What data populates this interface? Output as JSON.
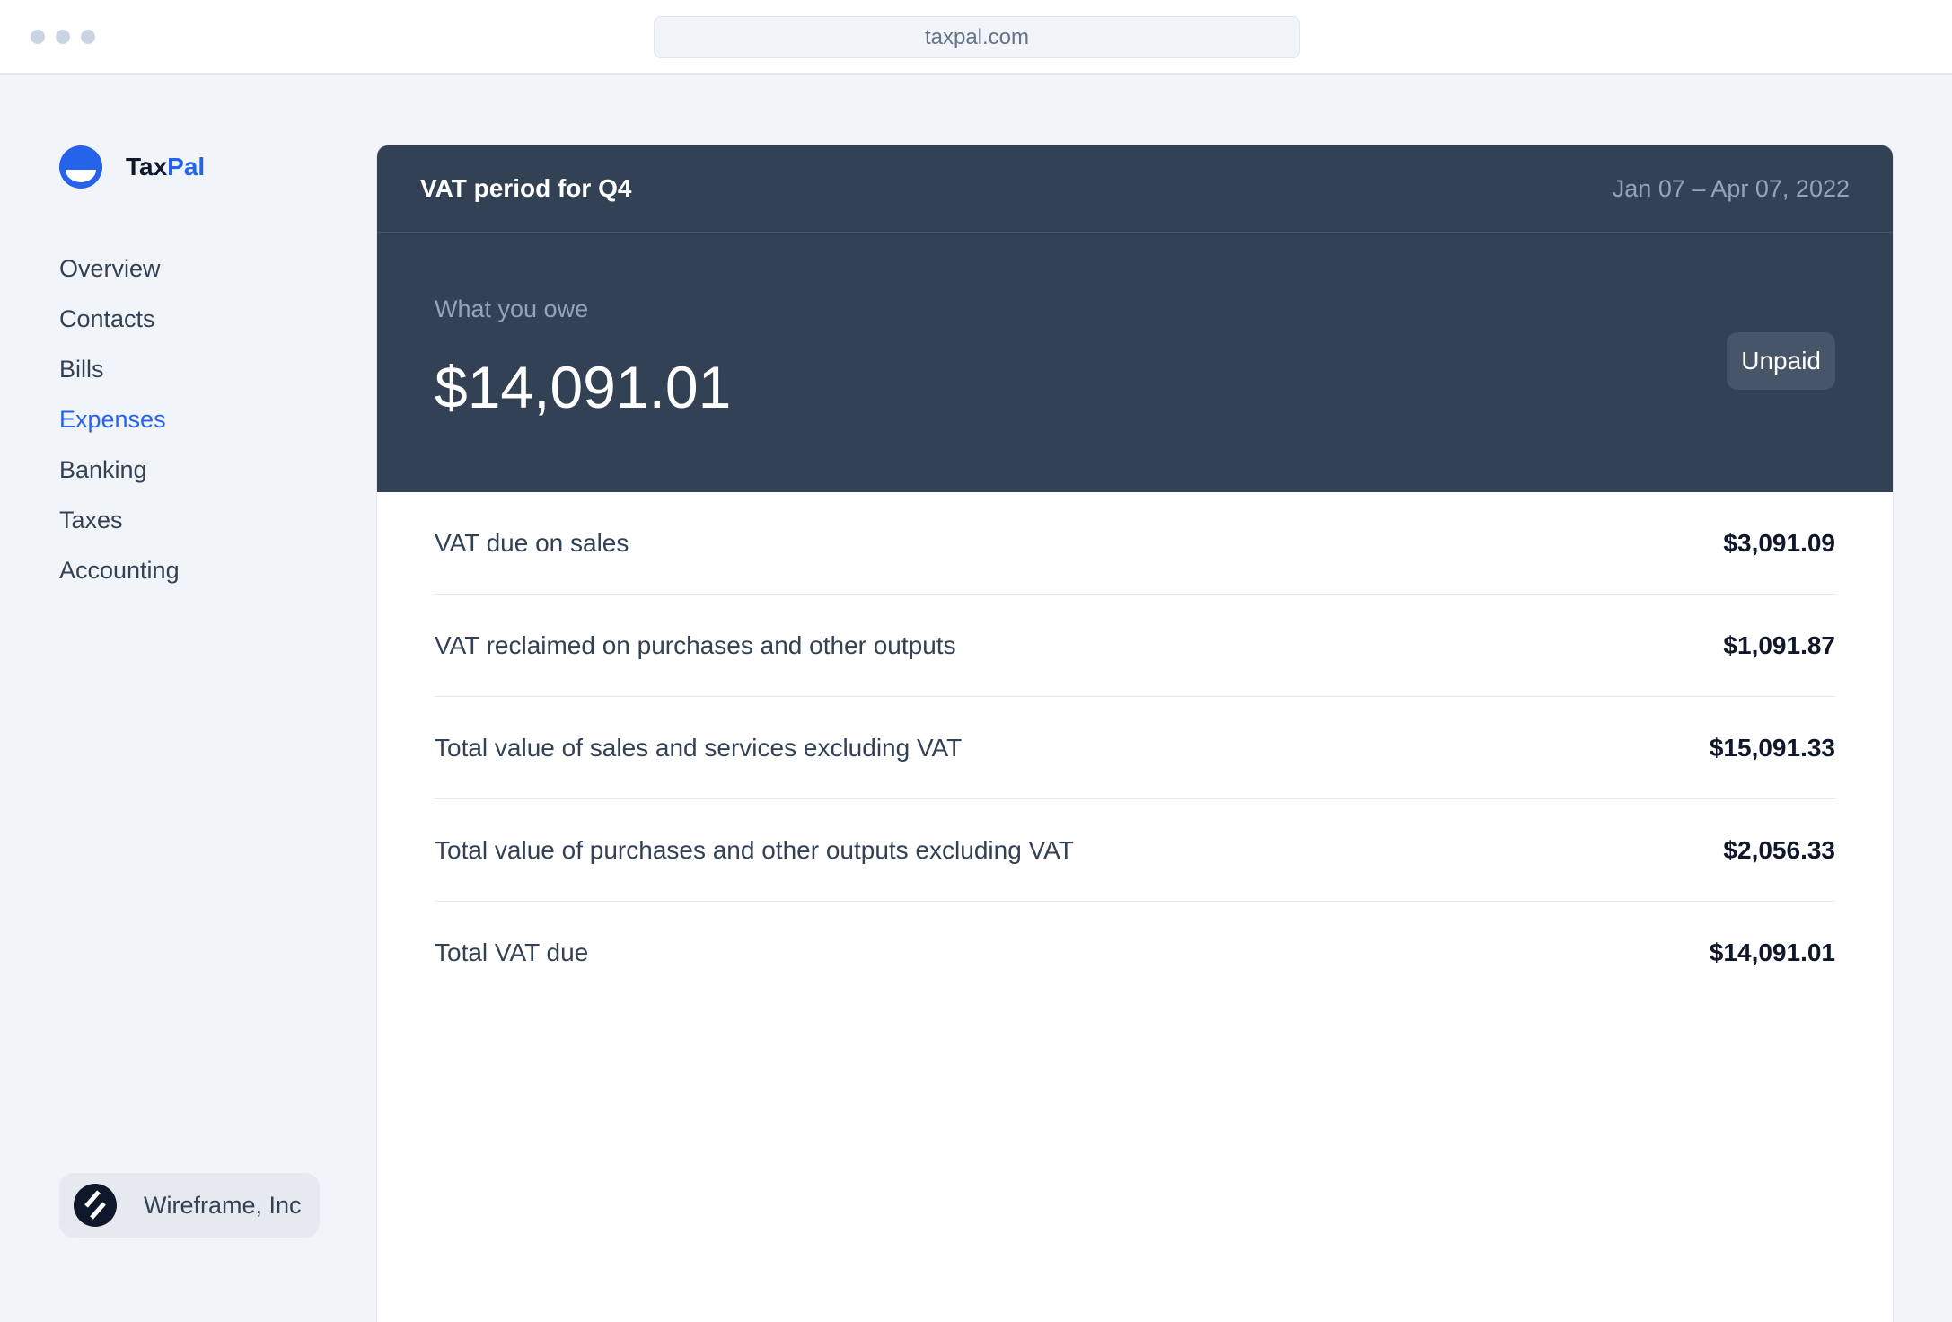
{
  "browser": {
    "url": "taxpal.com"
  },
  "brand": {
    "name_part1": "Tax",
    "name_part2": "Pal",
    "accent": "#2563eb"
  },
  "sidebar": {
    "items": [
      {
        "label": "Overview"
      },
      {
        "label": "Contacts"
      },
      {
        "label": "Bills"
      },
      {
        "label": "Expenses",
        "active": true
      },
      {
        "label": "Banking"
      },
      {
        "label": "Taxes"
      },
      {
        "label": "Accounting"
      }
    ],
    "organization": "Wireframe, Inc"
  },
  "card": {
    "title": "VAT period for Q4",
    "date_range": "Jan 07 – Apr 07, 2022",
    "owe_label": "What you owe",
    "owe_amount": "$14,091.01",
    "status": "Unpaid",
    "rows": [
      {
        "label": "VAT due on sales",
        "value": "$3,091.09"
      },
      {
        "label": "VAT reclaimed on purchases and other outputs",
        "value": "$1,091.87"
      },
      {
        "label": "Total value of sales and services excluding VAT",
        "value": "$15,091.33"
      },
      {
        "label": "Total value of purchases and other outputs excluding VAT",
        "value": "$2,056.33"
      },
      {
        "label": "Total VAT due",
        "value": "$14,091.01"
      }
    ]
  }
}
